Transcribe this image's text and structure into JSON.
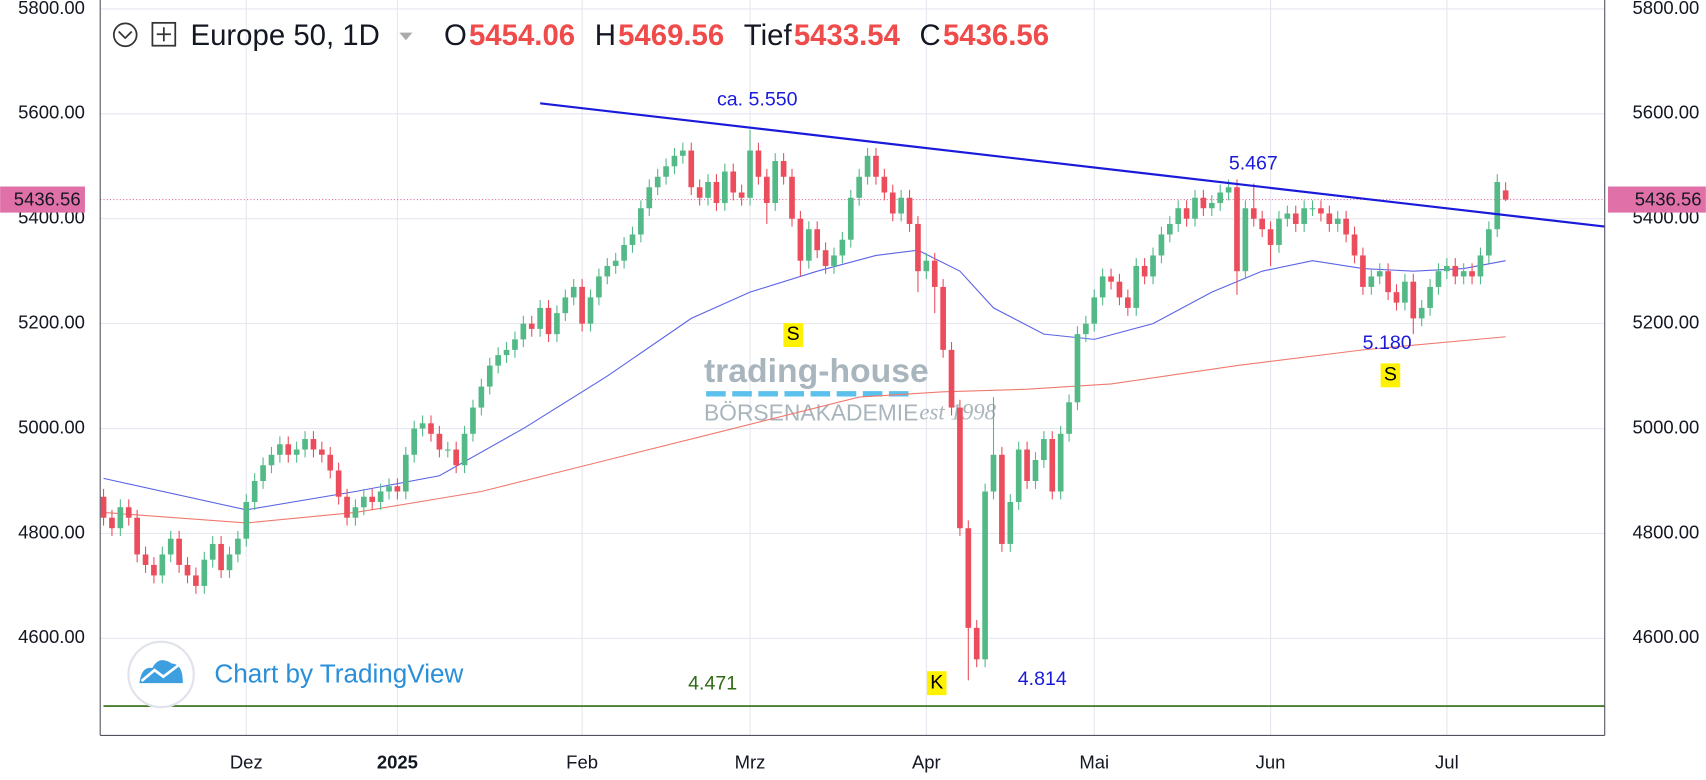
{
  "chart_data": {
    "type": "candlestick",
    "header": {
      "symbol": "Europe 50, 1D",
      "labels": [
        "O",
        "H",
        "Tief",
        "C"
      ]
    },
    "open": [
      4870,
      4830,
      4810,
      4850,
      4830,
      4760,
      4740,
      4720,
      4760,
      4790,
      4740,
      4720,
      4700,
      4750,
      4780,
      4730,
      4760,
      4790,
      4860,
      4900,
      4930,
      4950,
      4970,
      4950,
      4960,
      4980,
      4960,
      4950,
      4920,
      4870,
      4830,
      4850,
      4870,
      4860,
      4880,
      4890,
      4880,
      4950,
      5000,
      5010,
      4990,
      4960,
      4960,
      4930,
      4990,
      5040,
      5080,
      5120,
      5140,
      5150,
      5170,
      5200,
      5190,
      5230,
      5180,
      5220,
      5250,
      5270,
      5200,
      5250,
      5290,
      5310,
      5320,
      5350,
      5370,
      5420,
      5460,
      5480,
      5500,
      5520,
      5530,
      5460,
      5440,
      5470,
      5430,
      5490,
      5450,
      5440,
      5530,
      5480,
      5430,
      5510,
      5480,
      5400,
      5320,
      5380,
      5340,
      5310,
      5330,
      5360,
      5440,
      5480,
      5520,
      5480,
      5450,
      5410,
      5440,
      5390,
      5300,
      5320,
      5270,
      5150,
      5040,
      4810,
      4620,
      4560,
      4880,
      4950,
      4780,
      4860,
      4960,
      4900,
      4940,
      4980,
      4880,
      4990,
      5050,
      5180,
      5200,
      5250,
      5290,
      5280,
      5250,
      5230,
      5310,
      5290,
      5330,
      5370,
      5390,
      5420,
      5400,
      5440,
      5420,
      5430,
      5450,
      5460,
      5300,
      5420,
      5400,
      5380,
      5350,
      5400,
      5410,
      5390,
      5420,
      5420,
      5410,
      5390,
      5400,
      5370,
      5330,
      5270,
      5290,
      5300,
      5260,
      5240,
      5280,
      5210,
      5230,
      5270,
      5300,
      5310,
      5290,
      5300,
      5290,
      5330,
      5380,
      5454.06
    ],
    "high": [
      4885,
      4845,
      4865,
      4865,
      4845,
      4775,
      4755,
      4775,
      4805,
      4805,
      4755,
      4735,
      4765,
      4795,
      4795,
      4775,
      4805,
      4875,
      4915,
      4945,
      4965,
      4985,
      4985,
      4975,
      4995,
      4995,
      4975,
      4965,
      4935,
      4885,
      4865,
      4885,
      4885,
      4895,
      4905,
      4905,
      4965,
      5015,
      5025,
      5025,
      5005,
      4975,
      4975,
      5005,
      5055,
      5095,
      5135,
      5155,
      5165,
      5185,
      5215,
      5215,
      5245,
      5245,
      5235,
      5265,
      5285,
      5285,
      5265,
      5305,
      5325,
      5335,
      5365,
      5385,
      5435,
      5475,
      5495,
      5515,
      5535,
      5545,
      5545,
      5475,
      5485,
      5485,
      5505,
      5505,
      5465,
      5570,
      5545,
      5495,
      5525,
      5525,
      5495,
      5415,
      5395,
      5395,
      5355,
      5345,
      5375,
      5455,
      5495,
      5535,
      5535,
      5495,
      5465,
      5455,
      5455,
      5405,
      5335,
      5335,
      5285,
      5165,
      5055,
      4825,
      4635,
      4895,
      5060,
      4965,
      4875,
      4975,
      4975,
      4955,
      4995,
      4995,
      5005,
      5065,
      5195,
      5215,
      5265,
      5305,
      5305,
      5295,
      5265,
      5325,
      5325,
      5345,
      5385,
      5405,
      5435,
      5435,
      5455,
      5455,
      5445,
      5465,
      5475,
      5475,
      5435,
      5467,
      5415,
      5395,
      5415,
      5425,
      5425,
      5435,
      5435,
      5435,
      5425,
      5415,
      5415,
      5385,
      5345,
      5305,
      5315,
      5315,
      5275,
      5295,
      5295,
      5245,
      5285,
      5315,
      5325,
      5325,
      5315,
      5315,
      5345,
      5395,
      5485,
      5469.56
    ],
    "low": [
      4815,
      4795,
      4795,
      4815,
      4745,
      4725,
      4705,
      4705,
      4745,
      4725,
      4705,
      4685,
      4685,
      4735,
      4715,
      4715,
      4745,
      4775,
      4845,
      4885,
      4915,
      4935,
      4935,
      4935,
      4945,
      4945,
      4935,
      4905,
      4855,
      4815,
      4815,
      4835,
      4845,
      4845,
      4865,
      4865,
      4865,
      4935,
      4985,
      4975,
      4945,
      4945,
      4915,
      4915,
      4975,
      5025,
      5065,
      5105,
      5125,
      5135,
      5155,
      5175,
      5175,
      5165,
      5165,
      5205,
      5235,
      5185,
      5185,
      5235,
      5275,
      5295,
      5305,
      5335,
      5355,
      5405,
      5445,
      5465,
      5485,
      5505,
      5445,
      5425,
      5425,
      5415,
      5415,
      5435,
      5425,
      5425,
      5465,
      5390,
      5415,
      5465,
      5385,
      5290,
      5305,
      5325,
      5295,
      5295,
      5315,
      5345,
      5425,
      5465,
      5465,
      5435,
      5395,
      5395,
      5375,
      5260,
      5285,
      5220,
      5135,
      5025,
      4795,
      4520,
      4545,
      4545,
      4865,
      4765,
      4765,
      4845,
      4885,
      4885,
      4925,
      4865,
      4865,
      4975,
      5035,
      5165,
      5185,
      5235,
      5265,
      5235,
      5215,
      5215,
      5275,
      5275,
      5315,
      5355,
      5375,
      5385,
      5385,
      5405,
      5405,
      5415,
      5435,
      5255,
      5285,
      5385,
      5365,
      5310,
      5335,
      5385,
      5375,
      5375,
      5405,
      5395,
      5375,
      5375,
      5355,
      5315,
      5255,
      5255,
      5275,
      5245,
      5225,
      5225,
      5180,
      5195,
      5215,
      5255,
      5285,
      5275,
      5275,
      5275,
      5275,
      5315,
      5365,
      5433.54
    ],
    "close": [
      4830,
      4810,
      4850,
      4830,
      4760,
      4740,
      4720,
      4760,
      4790,
      4740,
      4720,
      4700,
      4750,
      4780,
      4730,
      4760,
      4790,
      4860,
      4900,
      4930,
      4950,
      4970,
      4950,
      4960,
      4980,
      4960,
      4950,
      4920,
      4870,
      4830,
      4850,
      4870,
      4860,
      4880,
      4890,
      4880,
      4950,
      5000,
      5010,
      4990,
      4960,
      4960,
      4930,
      4990,
      5040,
      5080,
      5120,
      5140,
      5150,
      5170,
      5200,
      5190,
      5230,
      5180,
      5220,
      5250,
      5270,
      5200,
      5250,
      5290,
      5310,
      5320,
      5350,
      5370,
      5420,
      5460,
      5480,
      5500,
      5520,
      5530,
      5460,
      5440,
      5470,
      5430,
      5490,
      5450,
      5440,
      5530,
      5480,
      5430,
      5510,
      5480,
      5400,
      5320,
      5380,
      5340,
      5310,
      5330,
      5360,
      5440,
      5480,
      5520,
      5480,
      5450,
      5410,
      5440,
      5390,
      5300,
      5320,
      5270,
      5150,
      5040,
      4810,
      4620,
      4560,
      4880,
      4950,
      4780,
      4860,
      4960,
      4900,
      4940,
      4980,
      4880,
      4990,
      5050,
      5180,
      5200,
      5250,
      5290,
      5280,
      5250,
      5230,
      5310,
      5290,
      5330,
      5370,
      5390,
      5420,
      5400,
      5440,
      5420,
      5430,
      5450,
      5460,
      5300,
      5420,
      5400,
      5380,
      5350,
      5400,
      5410,
      5390,
      5420,
      5420,
      5410,
      5390,
      5400,
      5370,
      5330,
      5270,
      5290,
      5300,
      5260,
      5240,
      5280,
      5210,
      5230,
      5270,
      5300,
      5310,
      5290,
      5300,
      5290,
      5330,
      5380,
      5470,
      5436.56
    ],
    "up_color": "#53b987",
    "down_color": "#eb4d5c",
    "lines": [
      {
        "color": "#5b63e6",
        "x": [
          0,
          17,
          30,
          40,
          50,
          60,
          70,
          77,
          85,
          92,
          97,
          102,
          106,
          112,
          118,
          125,
          132,
          138,
          144,
          150,
          156,
          162,
          167
        ],
        "values": [
          4905,
          4845,
          4880,
          4910,
          5000,
          5100,
          5210,
          5260,
          5300,
          5330,
          5340,
          5300,
          5230,
          5180,
          5170,
          5200,
          5260,
          5300,
          5320,
          5305,
          5300,
          5305,
          5320
        ]
      },
      {
        "color": "#f07a6e",
        "x": [
          0,
          17,
          30,
          45,
          60,
          75,
          90,
          100,
          110,
          120,
          135,
          150,
          167
        ],
        "values": [
          4840,
          4820,
          4840,
          4880,
          4940,
          5000,
          5060,
          5070,
          5075,
          5085,
          5120,
          5150,
          5175
        ]
      }
    ],
    "trendline": {
      "color": "#1a1adb",
      "x": [
        52,
        178.8
      ],
      "values": [
        5620,
        5385
      ]
    },
    "support": {
      "color": "#2e6b12",
      "value": 4471
    },
    "annotations": [
      "ca. 5.550",
      "5.467",
      "5.180",
      "4.471",
      "4.814",
      "S",
      "S",
      "K"
    ],
    "watermark": {
      "brand": "trading-house",
      "sub": "BÖRSENAKADEMIE",
      "est": "est 1998",
      "credit": "Chart by TradingView"
    },
    "xlim": [
      -0.4,
      178.8
    ],
    "xticks": [
      {
        "value": 17,
        "label": "Dez"
      },
      {
        "value": 35,
        "label": "2025"
      },
      {
        "value": 57,
        "label": "Feb"
      },
      {
        "value": 77,
        "label": "Mrz"
      },
      {
        "value": 98,
        "label": "Apr"
      },
      {
        "value": 118,
        "label": "Mai"
      },
      {
        "value": 139,
        "label": "Jun"
      },
      {
        "value": 160,
        "label": "Jul"
      }
    ],
    "ylim": [
      4415,
      5817
    ],
    "yticks": [
      {
        "value": 4600,
        "label": "4600.00"
      },
      {
        "value": 4800,
        "label": "4800.00"
      },
      {
        "value": 5000,
        "label": "5000.00"
      },
      {
        "value": 5200,
        "label": "5200.00"
      },
      {
        "value": 5400,
        "label": "5400.00"
      },
      {
        "value": 5600,
        "label": "5600.00"
      },
      {
        "value": 5800,
        "label": "5800.00"
      }
    ],
    "grid": true,
    "price_line_color": "#e070a8"
  }
}
